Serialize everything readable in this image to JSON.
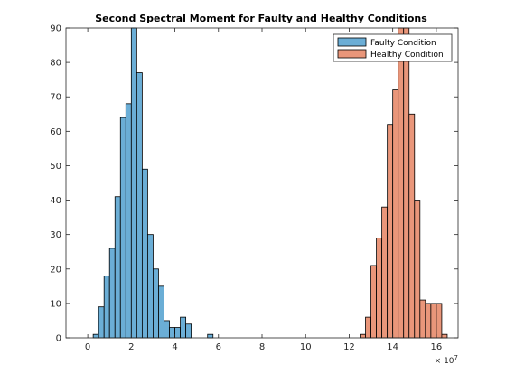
{
  "chart_data": {
    "type": "bar",
    "title": "Second Spectral Moment for Faulty and Healthy Conditions",
    "xlabel": "",
    "ylabel": "",
    "xlim": [
      -1,
      17
    ],
    "ylim": [
      0,
      90
    ],
    "x_exponent_label": "× 10",
    "x_exponent_power": "7",
    "xticks": [
      0,
      2,
      4,
      6,
      8,
      10,
      12,
      14,
      16
    ],
    "yticks": [
      0,
      10,
      20,
      30,
      40,
      50,
      60,
      70,
      80,
      90
    ],
    "legend": {
      "location": "top-right"
    },
    "bin_width": 0.25,
    "series": [
      {
        "name": "Faulty Condition",
        "color": "#6baed6",
        "bin_edges": [
          0.25,
          0.5,
          0.75,
          1.0,
          1.25,
          1.5,
          1.75,
          2.0,
          2.25,
          2.5,
          2.75,
          3.0,
          3.25,
          3.5,
          3.75,
          4.0,
          4.25,
          4.5,
          4.75,
          5.0,
          5.25,
          5.5,
          5.75
        ],
        "counts": [
          1,
          9,
          18,
          26,
          41,
          64,
          68,
          90,
          77,
          49,
          30,
          20,
          15,
          5,
          3,
          3,
          6,
          4,
          0,
          0,
          0,
          1
        ]
      },
      {
        "name": "Healthy Condition",
        "color": "#e9967a",
        "bin_edges": [
          12.5,
          12.75,
          13.0,
          13.25,
          13.5,
          13.75,
          14.0,
          14.25,
          14.5,
          14.75,
          15.0,
          15.25,
          15.5,
          15.75,
          16.0,
          16.25,
          16.5
        ],
        "counts": [
          1,
          6,
          21,
          29,
          38,
          62,
          72,
          90,
          90,
          65,
          40,
          11,
          10,
          10,
          10,
          1
        ]
      }
    ]
  }
}
